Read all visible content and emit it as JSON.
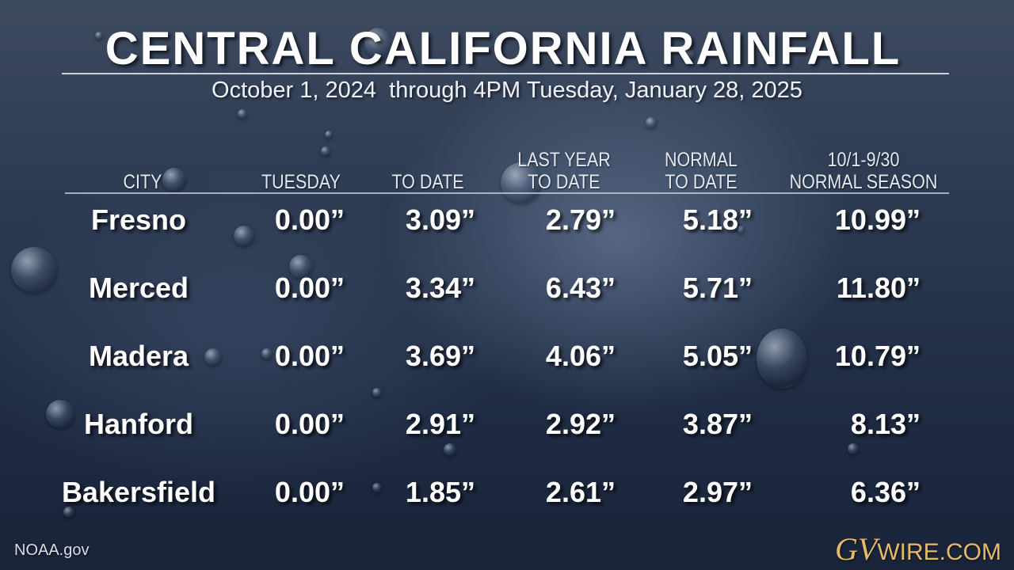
{
  "title": "CENTRAL CALIFORNIA RAINFALL",
  "subtitle": "October 1, 2024  through 4PM Tuesday, January 28, 2025",
  "table": {
    "headers": [
      {
        "line1": "",
        "line2": "CITY"
      },
      {
        "line1": "",
        "line2": "TUESDAY"
      },
      {
        "line1": "",
        "line2": "TO DATE"
      },
      {
        "line1": "LAST YEAR",
        "line2": "TO DATE"
      },
      {
        "line1": "NORMAL",
        "line2": "TO DATE"
      },
      {
        "line1": "10/1-9/30",
        "line2": "NORMAL SEASON"
      }
    ],
    "rows": [
      {
        "city": "Fresno",
        "tuesday": "0.00”",
        "to_date": "3.09”",
        "last_year": "2.79”",
        "normal_to_date": "5.18”",
        "normal_season": "10.99”"
      },
      {
        "city": "Merced",
        "tuesday": "0.00”",
        "to_date": "3.34”",
        "last_year": "6.43”",
        "normal_to_date": "5.71”",
        "normal_season": "11.80”"
      },
      {
        "city": "Madera",
        "tuesday": "0.00”",
        "to_date": "3.69”",
        "last_year": "4.06”",
        "normal_to_date": "5.05”",
        "normal_season": "10.79”"
      },
      {
        "city": "Hanford",
        "tuesday": "0.00”",
        "to_date": "2.91”",
        "last_year": "2.92”",
        "normal_to_date": "3.87”",
        "normal_season": "8.13”"
      },
      {
        "city": "Bakersfield",
        "tuesday": "0.00”",
        "to_date": "1.85”",
        "last_year": "2.61”",
        "normal_to_date": "2.97”",
        "normal_season": "6.36”"
      }
    ]
  },
  "source": "NOAA.gov",
  "logo": {
    "prefix": "GV",
    "suffix": "WIRE.COM"
  },
  "colors": {
    "background": "#2c3a52",
    "text": "#ffffff",
    "logo": "#e6b86a"
  }
}
